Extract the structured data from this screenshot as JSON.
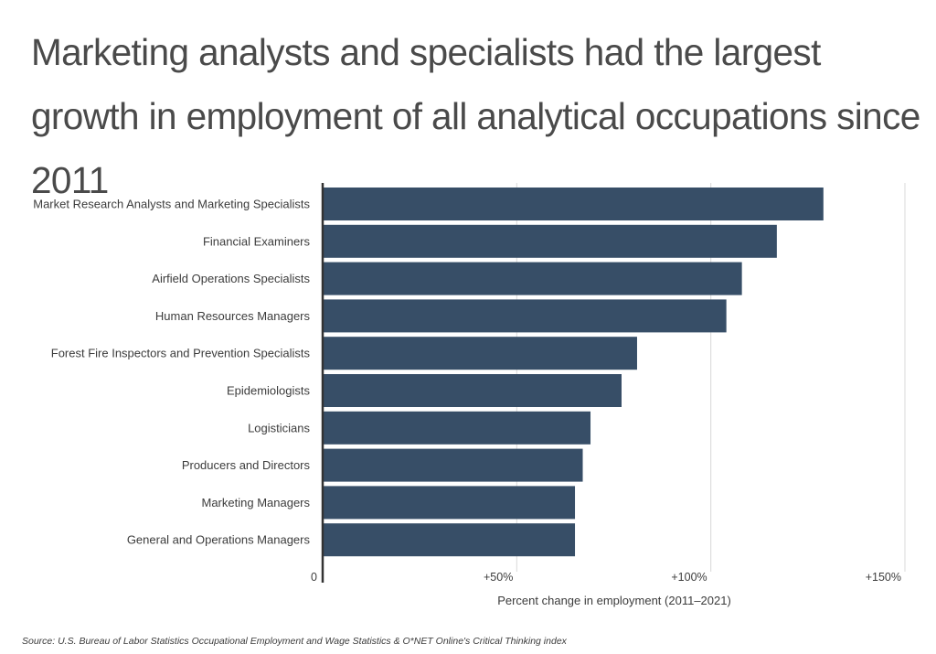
{
  "title": "Marketing analysts and specialists had the largest growth in employment of all analytical occupations since 2011",
  "source": "Source: U.S. Bureau of Labor Statistics Occupational Employment and Wage Statistics & O*NET Online's Critical Thinking index",
  "colors": {
    "bar": "#374e67",
    "grid": "#d9d9d9",
    "axis": "#333333"
  },
  "chart_data": {
    "type": "bar",
    "orientation": "horizontal",
    "xlabel": "Percent change in employment (2011–2021)",
    "ylabel": "",
    "xlim": [
      0,
      150
    ],
    "xticks": [
      {
        "value": 0,
        "label": "0"
      },
      {
        "value": 50,
        "label": "+50%"
      },
      {
        "value": 100,
        "label": "+100%"
      },
      {
        "value": 150,
        "label": "+150%"
      }
    ],
    "grid": "vertical",
    "categories": [
      "Market Research Analysts and Marketing Specialists",
      "Financial Examiners",
      "Airfield Operations Specialists",
      "Human Resources Managers",
      "Forest Fire Inspectors and Prevention Specialists",
      "Epidemiologists",
      "Logisticians",
      "Producers and Directors",
      "Marketing Managers",
      "General and Operations Managers"
    ],
    "values": [
      129,
      117,
      108,
      104,
      81,
      77,
      69,
      67,
      65,
      65
    ]
  }
}
